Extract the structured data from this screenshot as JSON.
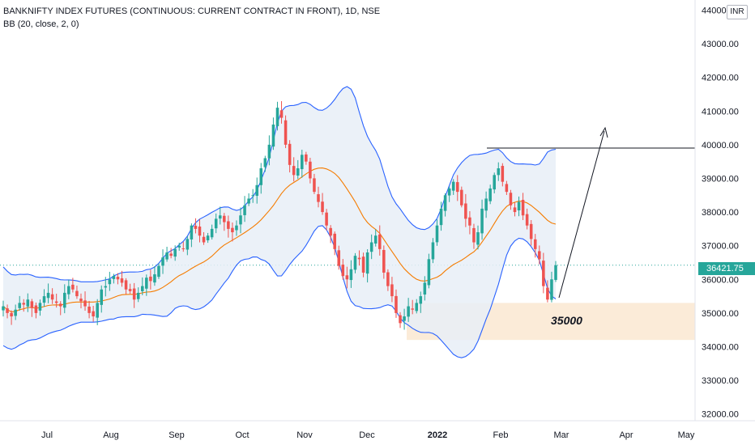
{
  "legend": {
    "symbol_title": "BANKNIFTY INDEX FUTURES (CONTINUOUS: CURRENT CONTRACT IN FRONT), 1D, NSE",
    "indicator": "BB (20, close, 2, 0)"
  },
  "currency": "INR",
  "last_price": "36421.75",
  "annotation": "35000",
  "colors": {
    "up": "#26a69a",
    "down": "#ef5350",
    "bb_band": "#2962ff",
    "bb_basis": "#f57c00",
    "bb_fill": "#e8eef7",
    "support_zone": "#fbe9d4",
    "resistance_line": "#131722"
  },
  "chart_data": {
    "type": "candlestick",
    "title": "BANKNIFTY INDEX FUTURES (CONTINUOUS: CURRENT CONTRACT IN FRONT), 1D, NSE",
    "y_axis": {
      "ticks": [
        "32000.00",
        "33000.00",
        "34000.00",
        "35000.00",
        "36000.00",
        "37000.00",
        "38000.00",
        "39000.00",
        "40000.00",
        "41000.00",
        "42000.00",
        "43000.00",
        "44000.00"
      ],
      "range": [
        31800,
        44300
      ]
    },
    "x_axis": {
      "ticks": [
        {
          "label": "Jul",
          "bold": false
        },
        {
          "label": "Aug",
          "bold": false
        },
        {
          "label": "Sep",
          "bold": false
        },
        {
          "label": "Oct",
          "bold": false
        },
        {
          "label": "Nov",
          "bold": false
        },
        {
          "label": "Dec",
          "bold": false
        },
        {
          "label": "2022",
          "bold": true
        },
        {
          "label": "Feb",
          "bold": false
        },
        {
          "label": "Mar",
          "bold": false
        },
        {
          "label": "Apr",
          "bold": false
        },
        {
          "label": "May",
          "bold": false
        }
      ]
    },
    "close_path": [
      35200,
      35000,
      34900,
      35100,
      35300,
      35250,
      35400,
      35150,
      35000,
      35300,
      35500,
      35600,
      35400,
      35300,
      35200,
      35600,
      35800,
      35700,
      35500,
      35350,
      35200,
      35000,
      34900,
      35300,
      35700,
      35800,
      36000,
      36100,
      36000,
      35900,
      35700,
      35650,
      35400,
      35600,
      35800,
      36050,
      35950,
      36150,
      36400,
      36650,
      36800,
      36700,
      36900,
      37000,
      36900,
      37200,
      37600,
      37500,
      37300,
      37100,
      37300,
      37500,
      37800,
      37900,
      37700,
      37500,
      37400,
      37600,
      37900,
      38200,
      38400,
      38500,
      38800,
      39300,
      39600,
      40000,
      40600,
      41100,
      40800,
      40000,
      39400,
      39100,
      39300,
      39700,
      39500,
      39000,
      38600,
      38300,
      38000,
      37600,
      37300,
      36900,
      36400,
      36100,
      36000,
      36300,
      36700,
      36600,
      36200,
      36800,
      37100,
      37300,
      36900,
      36200,
      35800,
      35500,
      35000,
      34700,
      34900,
      35200,
      35100,
      35300,
      35500,
      35900,
      36600,
      37100,
      37600,
      38100,
      38500,
      38700,
      38900,
      38600,
      38200,
      37800,
      37600,
      37100,
      37400,
      38100,
      38400,
      38700,
      39100,
      39300,
      38900,
      38600,
      38200,
      38000,
      38300,
      37900,
      37600,
      37200,
      36900,
      36600,
      35800,
      35400,
      36000,
      36421.75
    ],
    "bollinger": {
      "period": 20,
      "source": "close",
      "mult": 2,
      "offset": 0
    },
    "levels": {
      "resistance": 39900,
      "support_zone": [
        34200,
        35300
      ],
      "target_note": 35000
    }
  }
}
